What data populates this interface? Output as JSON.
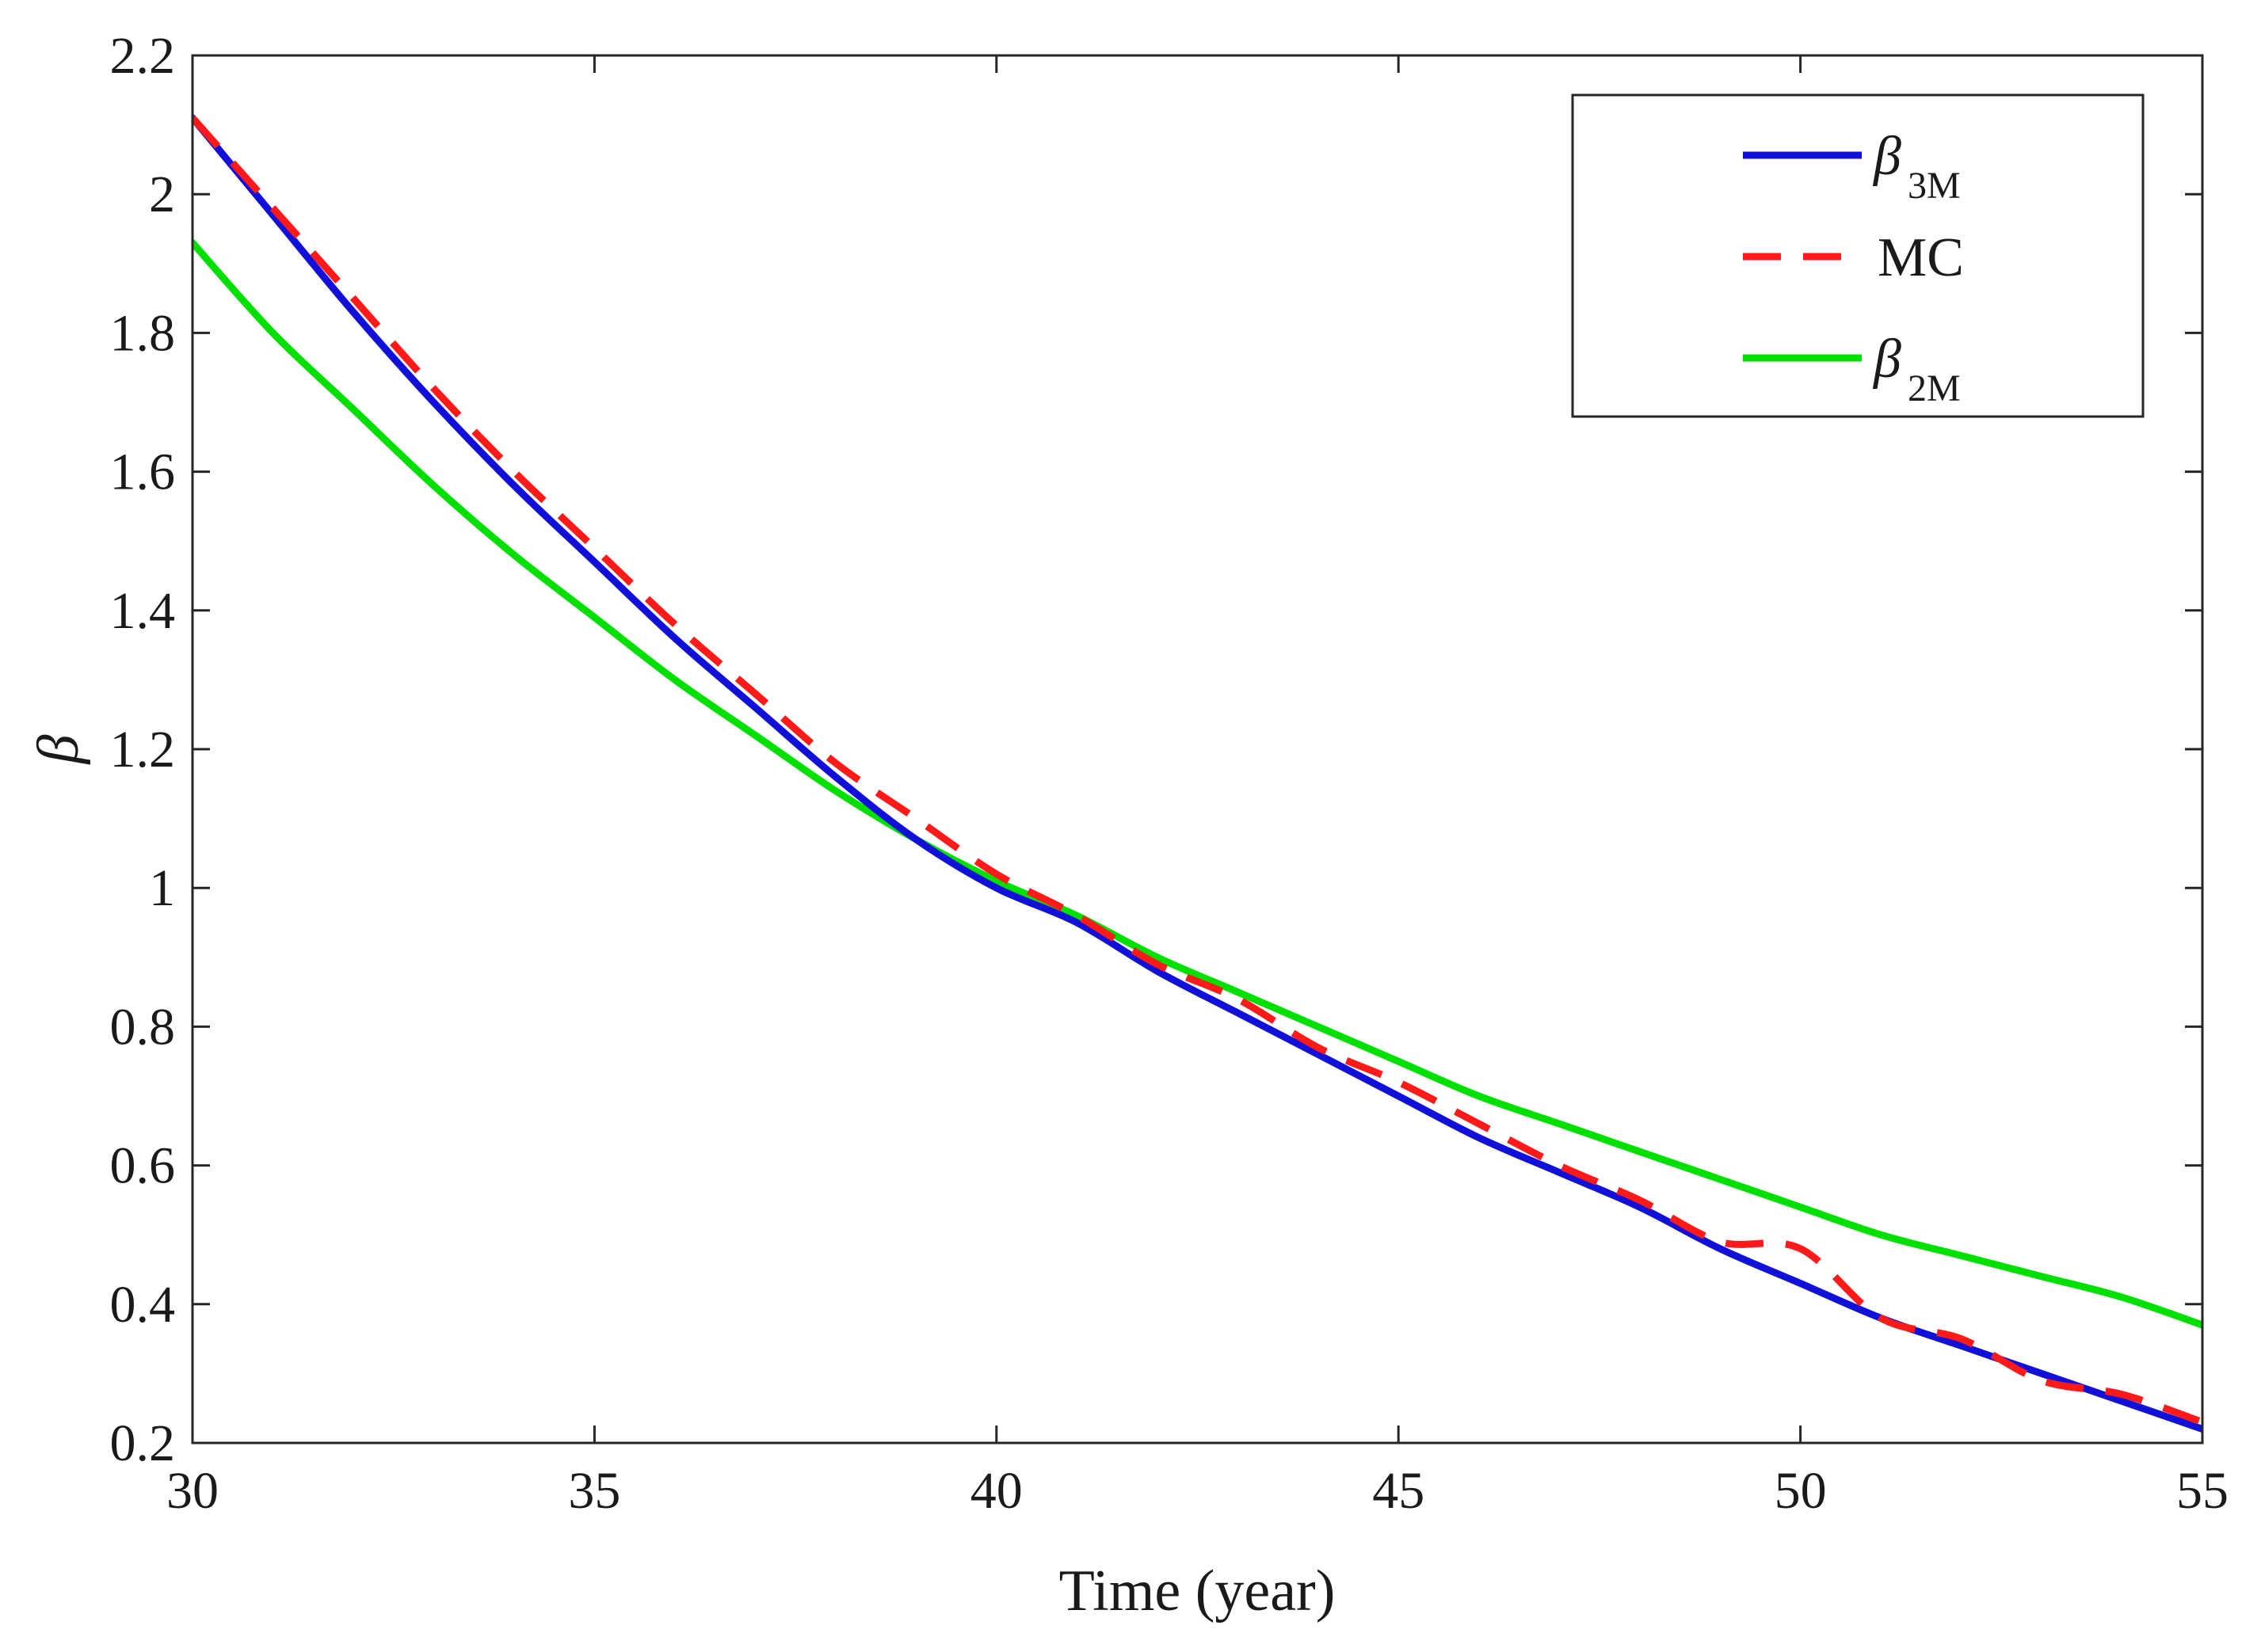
{
  "chart_data": {
    "type": "line",
    "title": "",
    "xlabel": "Time (year)",
    "ylabel": "β",
    "xlim": [
      30,
      55
    ],
    "ylim": [
      0.2,
      2.2
    ],
    "xticks": [
      30,
      35,
      40,
      45,
      50,
      55
    ],
    "xtick_labels": [
      "30",
      "35",
      "40",
      "45",
      "50",
      "55"
    ],
    "yticks": [
      0.2,
      0.4,
      0.6,
      0.8,
      1.0,
      1.2,
      1.4,
      1.6,
      1.8,
      2.0,
      2.2
    ],
    "ytick_labels": [
      "0.2",
      "0.4",
      "0.6",
      "0.8",
      "1",
      "1.2",
      "1.4",
      "1.6",
      "1.8",
      "2",
      "2.2"
    ],
    "grid": false,
    "legend_position": "top-right",
    "series": [
      {
        "name": "β3M",
        "legend_main": "β",
        "legend_sub": "3M",
        "color": "#1010d8",
        "style": "solid",
        "x": [
          30,
          31,
          32,
          33,
          34,
          35,
          36,
          37,
          38,
          39,
          40,
          41,
          42,
          43,
          44,
          45,
          46,
          47,
          48,
          49,
          50,
          51,
          52,
          53,
          54,
          55
        ],
        "y": [
          2.11,
          1.97,
          1.83,
          1.7,
          1.58,
          1.47,
          1.36,
          1.26,
          1.16,
          1.07,
          1.0,
          0.95,
          0.88,
          0.82,
          0.76,
          0.7,
          0.64,
          0.59,
          0.54,
          0.48,
          0.43,
          0.38,
          0.34,
          0.3,
          0.26,
          0.22
        ]
      },
      {
        "name": "MC",
        "legend_main": "MC",
        "legend_sub": "",
        "color": "#ff1a1a",
        "style": "dashed",
        "x": [
          30,
          31,
          32,
          33,
          34,
          35,
          36,
          37,
          38,
          39,
          40,
          41,
          42,
          43,
          44,
          45,
          46,
          47,
          48,
          49,
          50,
          51,
          52,
          53,
          54,
          55
        ],
        "y": [
          2.11,
          1.98,
          1.85,
          1.72,
          1.6,
          1.49,
          1.38,
          1.28,
          1.18,
          1.1,
          1.02,
          0.96,
          0.89,
          0.84,
          0.77,
          0.72,
          0.66,
          0.6,
          0.55,
          0.49,
          0.48,
          0.38,
          0.35,
          0.29,
          0.27,
          0.23
        ]
      },
      {
        "name": "β2M",
        "legend_main": "β",
        "legend_sub": "2M",
        "color": "#00e000",
        "style": "solid",
        "x": [
          30,
          31,
          32,
          33,
          34,
          35,
          36,
          37,
          38,
          39,
          40,
          41,
          42,
          43,
          44,
          45,
          46,
          47,
          48,
          49,
          50,
          51,
          52,
          53,
          54,
          55
        ],
        "y": [
          1.93,
          1.8,
          1.69,
          1.58,
          1.48,
          1.39,
          1.3,
          1.22,
          1.14,
          1.07,
          1.01,
          0.96,
          0.9,
          0.85,
          0.8,
          0.75,
          0.7,
          0.66,
          0.62,
          0.58,
          0.54,
          0.5,
          0.47,
          0.44,
          0.41,
          0.37
        ]
      }
    ]
  }
}
